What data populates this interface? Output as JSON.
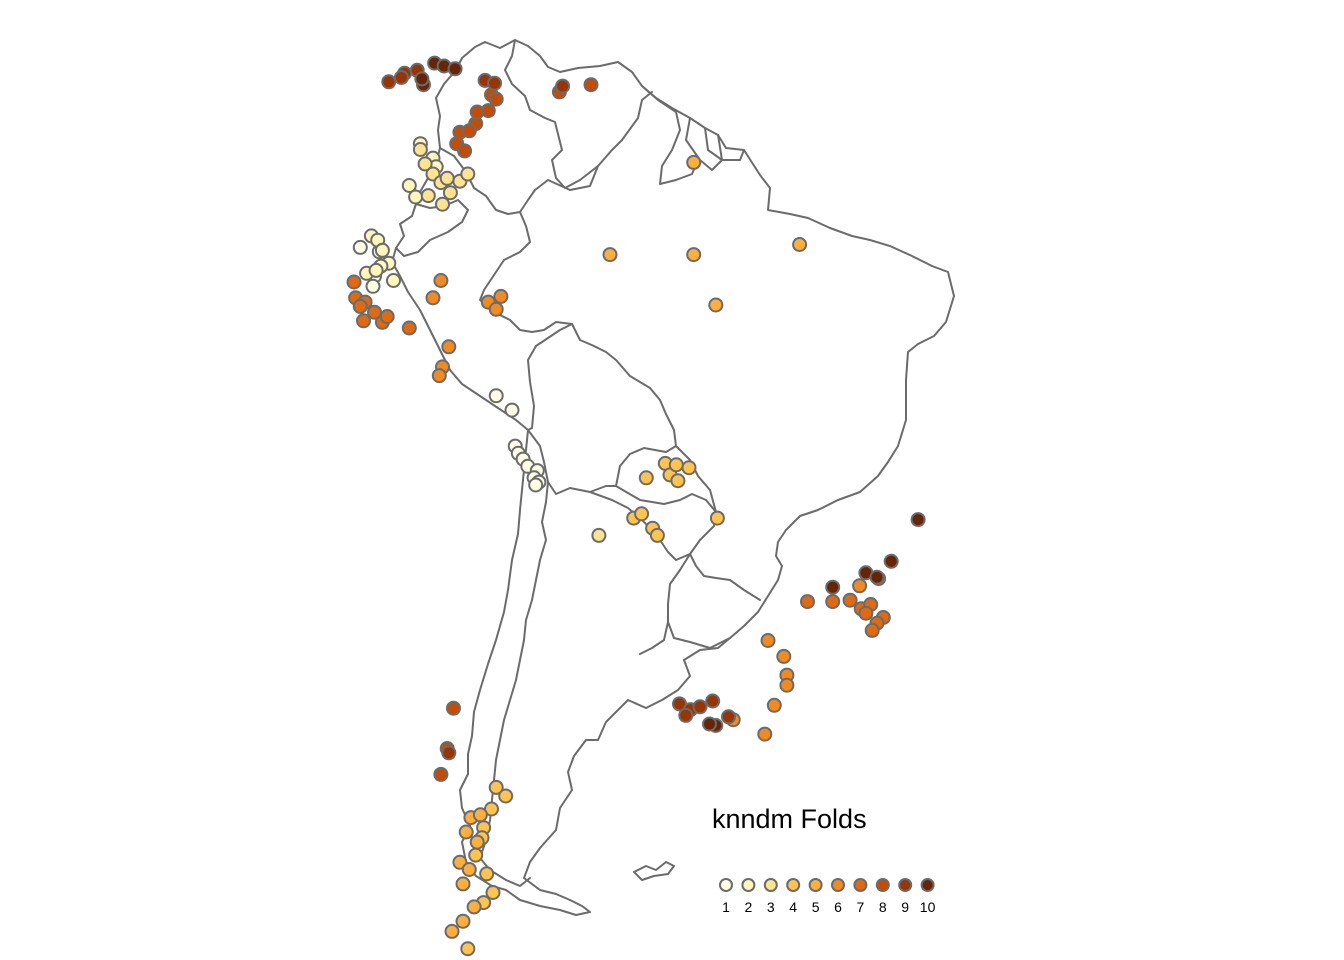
{
  "legend": {
    "title": "knndm Folds",
    "items": [
      {
        "label": "1",
        "color": "#ffffe5"
      },
      {
        "label": "2",
        "color": "#fff7bc"
      },
      {
        "label": "3",
        "color": "#fee391"
      },
      {
        "label": "4",
        "color": "#fec44f"
      },
      {
        "label": "5",
        "color": "#fdaf3e"
      },
      {
        "label": "6",
        "color": "#f28a22"
      },
      {
        "label": "7",
        "color": "#e06a12"
      },
      {
        "label": "8",
        "color": "#c54c05"
      },
      {
        "label": "9",
        "color": "#993404"
      },
      {
        "label": "10",
        "color": "#662506"
      }
    ]
  },
  "map": {
    "region": "South America",
    "outline_color": "#6b6b6b"
  },
  "chart_data": {
    "type": "scatter",
    "title": "",
    "legend_title": "knndm Folds",
    "legend_position": "bottom-right",
    "series": [
      {
        "name": "1",
        "values": [
          [
            -71.0,
            -11.3
          ],
          [
            -70.0,
            -12.3
          ],
          [
            -69.8,
            -14.8
          ],
          [
            -69.6,
            -15.3
          ],
          [
            -69.3,
            -15.7
          ],
          [
            -69.0,
            -16.2
          ],
          [
            -68.4,
            -16.5
          ],
          [
            -68.6,
            -17.0
          ],
          [
            -68.3,
            -17.3
          ],
          [
            -68.5,
            -17.5
          ],
          [
            -79.6,
            -1.0
          ],
          [
            -78.4,
            -1.3
          ],
          [
            -78.7,
            -3.0
          ],
          [
            -78.8,
            -3.7
          ]
        ]
      },
      {
        "name": "2",
        "values": [
          [
            -75.8,
            6.2
          ],
          [
            -75.0,
            5.2
          ],
          [
            -74.8,
            4.6
          ],
          [
            -76.5,
            3.3
          ],
          [
            -76.1,
            2.5
          ],
          [
            -78.9,
            -0.2
          ],
          [
            -78.5,
            -0.5
          ],
          [
            -78.2,
            -1.2
          ],
          [
            -77.8,
            -2.1
          ],
          [
            -78.3,
            -2.3
          ],
          [
            -79.2,
            -2.8
          ],
          [
            -78.6,
            -2.6
          ],
          [
            -77.5,
            -3.3
          ]
        ]
      },
      {
        "name": "3",
        "values": [
          [
            -75.8,
            5.8
          ],
          [
            -75.5,
            4.8
          ],
          [
            -75.0,
            4.1
          ],
          [
            -74.5,
            3.5
          ],
          [
            -74.1,
            3.8
          ],
          [
            -73.3,
            3.6
          ],
          [
            -72.8,
            4.1
          ],
          [
            -73.9,
            2.8
          ],
          [
            -75.3,
            2.6
          ],
          [
            -74.4,
            2.0
          ],
          [
            -64.5,
            -21.0
          ]
        ]
      },
      {
        "name": "4",
        "values": [
          [
            -60.3,
            -16.0
          ],
          [
            -60.0,
            -16.8
          ],
          [
            -59.5,
            -17.2
          ],
          [
            -58.8,
            -16.3
          ],
          [
            -59.6,
            -16.1
          ],
          [
            -61.5,
            -17.0
          ],
          [
            -62.3,
            -19.8
          ],
          [
            -61.8,
            -19.5
          ],
          [
            -61.1,
            -20.5
          ],
          [
            -57.0,
            -19.8
          ],
          [
            -60.8,
            -21.0
          ],
          [
            -71.0,
            -38.5
          ],
          [
            -70.4,
            -39.1
          ],
          [
            -71.3,
            -40.0
          ],
          [
            -71.8,
            -41.3
          ],
          [
            -71.9,
            -42.0
          ],
          [
            -72.3,
            -43.2
          ],
          [
            -71.6,
            -44.5
          ],
          [
            -71.2,
            -45.8
          ],
          [
            -71.8,
            -46.5
          ],
          [
            -72.8,
            -49.7
          ]
        ]
      },
      {
        "name": "5",
        "values": [
          [
            -58.5,
            4.9
          ],
          [
            -63.8,
            -1.5
          ],
          [
            -58.5,
            -1.5
          ],
          [
            -51.8,
            -0.8
          ],
          [
            -57.1,
            -5.0
          ],
          [
            -72.6,
            -40.6
          ],
          [
            -72.0,
            -40.4
          ],
          [
            -72.9,
            -41.6
          ],
          [
            -72.2,
            -42.3
          ],
          [
            -73.3,
            -43.7
          ],
          [
            -72.7,
            -44.2
          ],
          [
            -73.1,
            -45.2
          ],
          [
            -72.4,
            -46.8
          ],
          [
            -73.1,
            -47.8
          ],
          [
            -73.8,
            -48.5
          ]
        ]
      },
      {
        "name": "6",
        "values": [
          [
            -74.5,
            -3.3
          ],
          [
            -75.0,
            -4.5
          ],
          [
            -74.0,
            -7.9
          ],
          [
            -74.4,
            -9.3
          ],
          [
            -74.6,
            -9.9
          ],
          [
            -71.5,
            -4.8
          ],
          [
            -71.0,
            -5.3
          ],
          [
            -70.7,
            -4.4
          ],
          [
            -53.8,
            -28.3
          ],
          [
            -52.8,
            -29.4
          ],
          [
            -52.6,
            -30.7
          ],
          [
            -52.6,
            -31.4
          ],
          [
            -53.4,
            -32.8
          ],
          [
            -54.0,
            -34.8
          ],
          [
            -56.0,
            -33.8
          ],
          [
            -46.8,
            -24.0
          ],
          [
            -48.0,
            -24.5
          ]
        ]
      },
      {
        "name": "7",
        "values": [
          [
            -80.0,
            -3.4
          ],
          [
            -79.9,
            -4.5
          ],
          [
            -79.3,
            -4.8
          ],
          [
            -78.7,
            -5.5
          ],
          [
            -79.6,
            -5.1
          ],
          [
            -78.2,
            -6.2
          ],
          [
            -79.4,
            -6.1
          ],
          [
            -76.5,
            -6.6
          ],
          [
            -77.9,
            -5.8
          ],
          [
            -48.6,
            -25.5
          ],
          [
            -47.9,
            -26.1
          ],
          [
            -47.3,
            -25.8
          ],
          [
            -47.6,
            -26.4
          ],
          [
            -46.5,
            -26.7
          ],
          [
            -46.9,
            -27.1
          ],
          [
            -47.2,
            -27.6
          ],
          [
            -49.7,
            -25.6
          ],
          [
            -51.3,
            -25.6
          ]
        ]
      },
      {
        "name": "8",
        "values": [
          [
            -73.3,
            7.0
          ],
          [
            -73.5,
            6.2
          ],
          [
            -73.0,
            5.7
          ],
          [
            -72.3,
            7.6
          ],
          [
            -72.7,
            7.1
          ],
          [
            -72.2,
            8.4
          ],
          [
            -71.3,
            9.6
          ],
          [
            -71.0,
            9.3
          ],
          [
            -71.5,
            8.5
          ],
          [
            -67.0,
            9.8
          ],
          [
            -65.0,
            10.3
          ],
          [
            -73.7,
            -33.0
          ],
          [
            -74.5,
            -37.6
          ],
          [
            -74.1,
            -35.8
          ]
        ]
      },
      {
        "name": "9",
        "values": [
          [
            -77.8,
            10.5
          ],
          [
            -76.8,
            11.1
          ],
          [
            -76.0,
            11.3
          ],
          [
            -77.0,
            10.8
          ],
          [
            -71.7,
            10.6
          ],
          [
            -71.1,
            10.4
          ],
          [
            -66.8,
            10.2
          ],
          [
            -59.4,
            -32.7
          ],
          [
            -58.7,
            -33.1
          ],
          [
            -59.0,
            -33.5
          ],
          [
            -58.1,
            -32.9
          ],
          [
            -57.3,
            -32.5
          ],
          [
            -56.3,
            -33.6
          ],
          [
            -74.0,
            -36.1
          ]
        ]
      },
      {
        "name": "10",
        "values": [
          [
            -74.9,
            11.8
          ],
          [
            -74.3,
            11.6
          ],
          [
            -73.6,
            11.4
          ],
          [
            -75.6,
            10.3
          ],
          [
            -75.7,
            10.7
          ],
          [
            -44.3,
            -19.9
          ],
          [
            -46.0,
            -22.8
          ],
          [
            -47.6,
            -23.6
          ],
          [
            -46.9,
            -23.9
          ],
          [
            -49.7,
            -24.6
          ],
          [
            -57.1,
            -34.2
          ],
          [
            -57.5,
            -34.1
          ]
        ]
      }
    ]
  }
}
